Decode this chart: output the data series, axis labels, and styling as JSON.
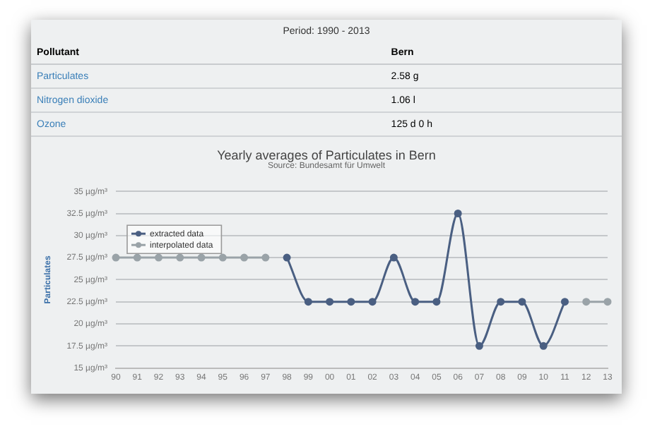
{
  "chart_data": {
    "type": "line",
    "title": "Yearly averages of Particulates in Bern",
    "subtitle": "Source: Bundesamt für Umwelt",
    "ylabel": "Particulates",
    "annotations": [
      "Period: 1990 - 2013",
      "Pollutant",
      "Bern",
      "Particulates",
      "2.58 g",
      "Nitrogen dioxide",
      "1.06 l",
      "Ozone",
      "125 d 0 h"
    ],
    "categories": [
      "90",
      "91",
      "92",
      "93",
      "94",
      "95",
      "96",
      "97",
      "98",
      "99",
      "00",
      "01",
      "02",
      "03",
      "04",
      "05",
      "06",
      "07",
      "08",
      "09",
      "10",
      "11",
      "12",
      "13"
    ],
    "series": [
      {
        "name": "extracted data",
        "color": "#4a5f82",
        "values": [
          null,
          null,
          null,
          null,
          null,
          null,
          null,
          null,
          27.5,
          22.5,
          22.5,
          22.5,
          22.5,
          27.5,
          22.5,
          22.5,
          32.5,
          17.5,
          22.5,
          22.5,
          17.5,
          22.5,
          null,
          null
        ]
      },
      {
        "name": "interpolated data",
        "color": "#9aa3a8",
        "values": [
          27.5,
          27.5,
          27.5,
          27.5,
          27.5,
          27.5,
          27.5,
          27.5,
          null,
          null,
          null,
          null,
          null,
          null,
          null,
          null,
          null,
          null,
          null,
          null,
          null,
          null,
          22.5,
          22.5
        ]
      }
    ],
    "ylim": [
      15,
      35
    ],
    "yticks": [
      {
        "value": 15,
        "label": "15 µg/m³"
      },
      {
        "value": 17.5,
        "label": "17.5 µg/m³"
      },
      {
        "value": 20,
        "label": "20 µg/m³"
      },
      {
        "value": 22.5,
        "label": "22.5 µg/m³"
      },
      {
        "value": 25,
        "label": "25 µg/m³"
      },
      {
        "value": 27.5,
        "label": "27.5 µg/m³"
      },
      {
        "value": 30,
        "label": "30 µg/m³"
      },
      {
        "value": 32.5,
        "label": "32.5 µg/m³"
      },
      {
        "value": 35,
        "label": "35 µg/m³"
      }
    ],
    "grid": "y",
    "legend": "top left",
    "marker": "circle",
    "line_style": "solid"
  }
}
